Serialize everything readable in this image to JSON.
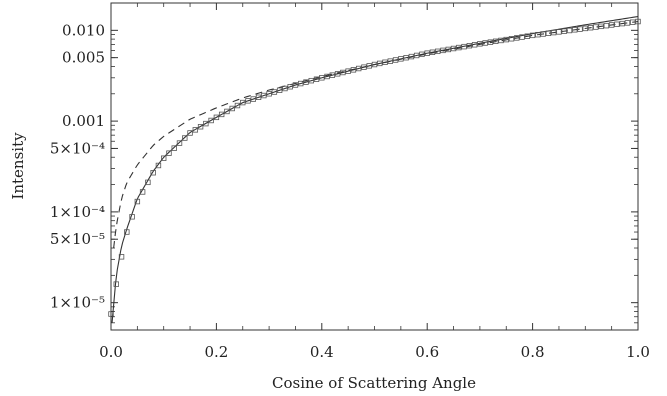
{
  "chart_data": {
    "type": "line",
    "title": "",
    "xlabel": "Cosine of Scattering Angle",
    "ylabel": "Intensity",
    "xscale": "linear",
    "yscale": "log",
    "xlim": [
      0.0,
      1.0
    ],
    "ylim": [
      5e-06,
      0.02
    ],
    "grid": false,
    "legend": "none",
    "x_ticks": [
      {
        "value": 0.0,
        "label": "0.0"
      },
      {
        "value": 0.2,
        "label": "0.2"
      },
      {
        "value": 0.4,
        "label": "0.4"
      },
      {
        "value": 0.6,
        "label": "0.6"
      },
      {
        "value": 0.8,
        "label": "0.8"
      },
      {
        "value": 1.0,
        "label": "1.0"
      }
    ],
    "y_ticks": [
      {
        "value": 0.01,
        "label": "0.010"
      },
      {
        "value": 0.005,
        "label": "0.005"
      },
      {
        "value": 0.001,
        "label": "0.001"
      },
      {
        "value": 0.0005,
        "label": "5×10⁻⁴"
      },
      {
        "value": 0.0001,
        "label": "1×10⁻⁴"
      },
      {
        "value": 5e-05,
        "label": "5×10⁻⁵"
      },
      {
        "value": 1e-05,
        "label": "1×10⁻⁵"
      }
    ],
    "series": [
      {
        "style": "solid",
        "color": "#333333",
        "x": [
          0.002,
          0.01,
          0.02,
          0.03,
          0.05,
          0.08,
          0.1,
          0.15,
          0.2,
          0.25,
          0.3,
          0.35,
          0.4,
          0.5,
          0.6,
          0.7,
          0.8,
          0.9,
          1.0
        ],
        "y": [
          6e-06,
          2e-05,
          4.2e-05,
          6.5e-05,
          0.00014,
          0.00028,
          0.0004,
          0.00075,
          0.0011,
          0.0016,
          0.002,
          0.0025,
          0.003,
          0.0042,
          0.0056,
          0.0072,
          0.0092,
          0.0115,
          0.0142
        ]
      },
      {
        "style": "dashed",
        "color": "#333333",
        "x": [
          0.005,
          0.01,
          0.02,
          0.03,
          0.05,
          0.08,
          0.1,
          0.15,
          0.2,
          0.25,
          0.3,
          0.35,
          0.4,
          0.5,
          0.6,
          0.7,
          0.8,
          0.9,
          1.0
        ],
        "y": [
          4e-05,
          7e-05,
          0.00014,
          0.00021,
          0.00033,
          0.00054,
          0.00068,
          0.00105,
          0.0014,
          0.0018,
          0.0022,
          0.0026,
          0.0031,
          0.0042,
          0.0055,
          0.007,
          0.0088,
          0.0105,
          0.0125
        ]
      },
      {
        "style": "markers",
        "marker": "square",
        "color": "#555555",
        "x_start": 0.0,
        "x_end": 1.0,
        "x_step": 0.01,
        "y_at_anchors": {
          "x": [
            0.0,
            0.01,
            0.02,
            0.03,
            0.05,
            0.08,
            0.1,
            0.15,
            0.2,
            0.25,
            0.3,
            0.35,
            0.4,
            0.5,
            0.6,
            0.7,
            0.8,
            0.9,
            1.0
          ],
          "y": [
            7.5e-06,
            1.6e-05,
            3.2e-05,
            6e-05,
            0.00013,
            0.00027,
            0.00039,
            0.00074,
            0.0011,
            0.0016,
            0.002,
            0.0025,
            0.003,
            0.0042,
            0.0056,
            0.0071,
            0.0088,
            0.0105,
            0.0125
          ]
        }
      }
    ]
  }
}
